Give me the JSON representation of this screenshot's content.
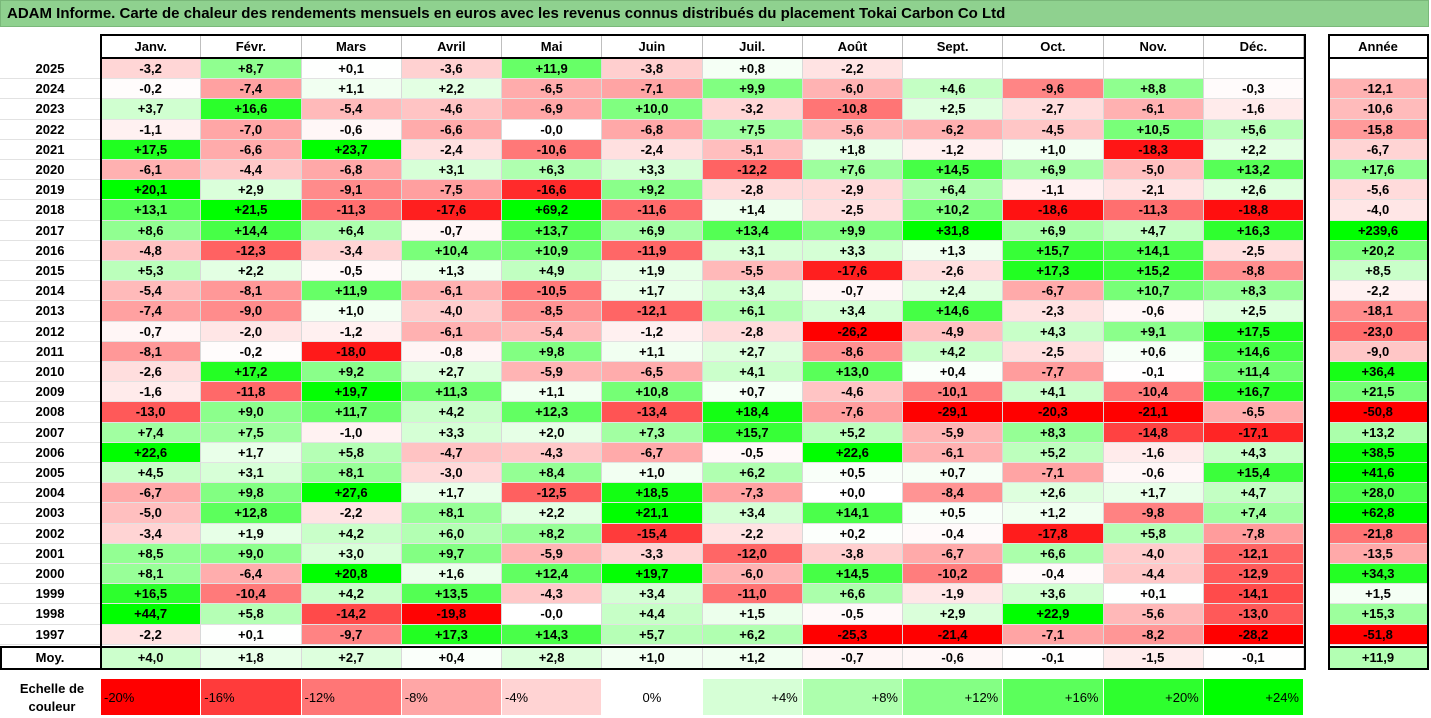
{
  "title": "ADAM Informe. Carte de chaleur des rendements mensuels en euros avec les revenus connus distribués du placement Tokai Carbon Co Ltd",
  "chart_data": {
    "type": "heatmap",
    "months": [
      "Janv.",
      "Févr.",
      "Mars",
      "Avril",
      "Mai",
      "Juin",
      "Juil.",
      "Août",
      "Sept.",
      "Oct.",
      "Nov.",
      "Déc."
    ],
    "annual_header": "Année",
    "rows": [
      {
        "year": "2025",
        "values": [
          "-3,2",
          "+8,7",
          "+0,1",
          "-3,6",
          "+11,9",
          "-3,8",
          "+0,8",
          "-2,2",
          "",
          "",
          "",
          ""
        ],
        "annual": ""
      },
      {
        "year": "2024",
        "values": [
          "-0,2",
          "-7,4",
          "+1,1",
          "+2,2",
          "-6,5",
          "-7,1",
          "+9,9",
          "-6,0",
          "+4,6",
          "-9,6",
          "+8,8",
          "-0,3"
        ],
        "annual": "-12,1"
      },
      {
        "year": "2023",
        "values": [
          "+3,7",
          "+16,6",
          "-5,4",
          "-4,6",
          "-6,9",
          "+10,0",
          "-3,2",
          "-10,8",
          "+2,5",
          "-2,7",
          "-6,1",
          "-1,6"
        ],
        "annual": "-10,6"
      },
      {
        "year": "2022",
        "values": [
          "-1,1",
          "-7,0",
          "-0,6",
          "-6,6",
          "-0,0",
          "-6,8",
          "+7,5",
          "-5,6",
          "-6,2",
          "-4,5",
          "+10,5",
          "+5,6"
        ],
        "annual": "-15,8"
      },
      {
        "year": "2021",
        "values": [
          "+17,5",
          "-6,6",
          "+23,7",
          "-2,4",
          "-10,6",
          "-2,4",
          "-5,1",
          "+1,8",
          "-1,2",
          "+1,0",
          "-18,3",
          "+2,2"
        ],
        "annual": "-6,7"
      },
      {
        "year": "2020",
        "values": [
          "-6,1",
          "-4,4",
          "-6,8",
          "+3,1",
          "+6,3",
          "+3,3",
          "-12,2",
          "+7,6",
          "+14,5",
          "+6,9",
          "-5,0",
          "+13,2"
        ],
        "annual": "+17,6"
      },
      {
        "year": "2019",
        "values": [
          "+20,1",
          "+2,9",
          "-9,1",
          "-7,5",
          "-16,6",
          "+9,2",
          "-2,8",
          "-2,9",
          "+6,4",
          "-1,1",
          "-2,1",
          "+2,6"
        ],
        "annual": "-5,6"
      },
      {
        "year": "2018",
        "values": [
          "+13,1",
          "+21,5",
          "-11,3",
          "-17,6",
          "+69,2",
          "-11,6",
          "+1,4",
          "-2,5",
          "+10,2",
          "-18,6",
          "-11,3",
          "-18,8"
        ],
        "annual": "-4,0"
      },
      {
        "year": "2017",
        "values": [
          "+8,6",
          "+14,4",
          "+6,4",
          "-0,7",
          "+13,7",
          "+6,9",
          "+13,4",
          "+9,9",
          "+31,8",
          "+6,9",
          "+4,7",
          "+16,3"
        ],
        "annual": "+239,6"
      },
      {
        "year": "2016",
        "values": [
          "-4,8",
          "-12,3",
          "-3,4",
          "+10,4",
          "+10,9",
          "-11,9",
          "+3,1",
          "+3,3",
          "+1,3",
          "+15,7",
          "+14,1",
          "-2,5"
        ],
        "annual": "+20,2"
      },
      {
        "year": "2015",
        "values": [
          "+5,3",
          "+2,2",
          "-0,5",
          "+1,3",
          "+4,9",
          "+1,9",
          "-5,5",
          "-17,6",
          "-2,6",
          "+17,3",
          "+15,2",
          "-8,8"
        ],
        "annual": "+8,5"
      },
      {
        "year": "2014",
        "values": [
          "-5,4",
          "-8,1",
          "+11,9",
          "-6,1",
          "-10,5",
          "+1,7",
          "+3,4",
          "-0,7",
          "+2,4",
          "-6,7",
          "+10,7",
          "+8,3"
        ],
        "annual": "-2,2"
      },
      {
        "year": "2013",
        "values": [
          "-7,4",
          "-9,0",
          "+1,0",
          "-4,0",
          "-8,5",
          "-12,1",
          "+6,1",
          "+3,4",
          "+14,6",
          "-2,3",
          "-0,6",
          "+2,5"
        ],
        "annual": "-18,1"
      },
      {
        "year": "2012",
        "values": [
          "-0,7",
          "-2,0",
          "-1,2",
          "-6,1",
          "-5,4",
          "-1,2",
          "-2,8",
          "-26,2",
          "-4,9",
          "+4,3",
          "+9,1",
          "+17,5"
        ],
        "annual": "-23,0"
      },
      {
        "year": "2011",
        "values": [
          "-8,1",
          "-0,2",
          "-18,0",
          "-0,8",
          "+9,8",
          "+1,1",
          "+2,7",
          "-8,6",
          "+4,2",
          "-2,5",
          "+0,6",
          "+14,6"
        ],
        "annual": "-9,0"
      },
      {
        "year": "2010",
        "values": [
          "-2,6",
          "+17,2",
          "+9,2",
          "+2,7",
          "-5,9",
          "-6,5",
          "+4,1",
          "+13,0",
          "+0,4",
          "-7,7",
          "-0,1",
          "+11,4"
        ],
        "annual": "+36,4"
      },
      {
        "year": "2009",
        "values": [
          "-1,6",
          "-11,8",
          "+19,7",
          "+11,3",
          "+1,1",
          "+10,8",
          "+0,7",
          "-4,6",
          "-10,1",
          "+4,1",
          "-10,4",
          "+16,7"
        ],
        "annual": "+21,5"
      },
      {
        "year": "2008",
        "values": [
          "-13,0",
          "+9,0",
          "+11,7",
          "+4,2",
          "+12,3",
          "-13,4",
          "+18,4",
          "-7,6",
          "-29,1",
          "-20,3",
          "-21,1",
          "-6,5"
        ],
        "annual": "-50,8"
      },
      {
        "year": "2007",
        "values": [
          "+7,4",
          "+7,5",
          "-1,0",
          "+3,3",
          "+2,0",
          "+7,3",
          "+15,7",
          "+5,2",
          "-5,9",
          "+8,3",
          "-14,8",
          "-17,1"
        ],
        "annual": "+13,2"
      },
      {
        "year": "2006",
        "values": [
          "+22,6",
          "+1,7",
          "+5,8",
          "-4,7",
          "-4,3",
          "-6,7",
          "-0,5",
          "+22,6",
          "-6,1",
          "+5,2",
          "-1,6",
          "+4,3"
        ],
        "annual": "+38,5"
      },
      {
        "year": "2005",
        "values": [
          "+4,5",
          "+3,1",
          "+8,1",
          "-3,0",
          "+8,4",
          "+1,0",
          "+6,2",
          "+0,5",
          "+0,7",
          "-7,1",
          "-0,6",
          "+15,4"
        ],
        "annual": "+41,6"
      },
      {
        "year": "2004",
        "values": [
          "-6,7",
          "+9,8",
          "+27,6",
          "+1,7",
          "-12,5",
          "+18,5",
          "-7,3",
          "+0,0",
          "-8,4",
          "+2,6",
          "+1,7",
          "+4,7"
        ],
        "annual": "+28,0"
      },
      {
        "year": "2003",
        "values": [
          "-5,0",
          "+12,8",
          "-2,2",
          "+8,1",
          "+2,2",
          "+21,1",
          "+3,4",
          "+14,1",
          "+0,5",
          "+1,2",
          "-9,8",
          "+7,4"
        ],
        "annual": "+62,8"
      },
      {
        "year": "2002",
        "values": [
          "-3,4",
          "+1,9",
          "+4,2",
          "+6,0",
          "+8,2",
          "-15,4",
          "-2,2",
          "+0,2",
          "-0,4",
          "-17,8",
          "+5,8",
          "-7,8"
        ],
        "annual": "-21,8"
      },
      {
        "year": "2001",
        "values": [
          "+8,5",
          "+9,0",
          "+3,0",
          "+9,7",
          "-5,9",
          "-3,3",
          "-12,0",
          "-3,8",
          "-6,7",
          "+6,6",
          "-4,0",
          "-12,1"
        ],
        "annual": "-13,5"
      },
      {
        "year": "2000",
        "values": [
          "+8,1",
          "-6,4",
          "+20,8",
          "+1,6",
          "+12,4",
          "+19,7",
          "-6,0",
          "+14,5",
          "-10,2",
          "-0,4",
          "-4,4",
          "-12,9"
        ],
        "annual": "+34,3"
      },
      {
        "year": "1999",
        "values": [
          "+16,5",
          "-10,4",
          "+4,2",
          "+13,5",
          "-4,3",
          "+3,4",
          "-11,0",
          "+6,6",
          "-1,9",
          "+3,6",
          "+0,1",
          "-14,1"
        ],
        "annual": "+1,5"
      },
      {
        "year": "1998",
        "values": [
          "+44,7",
          "+5,8",
          "-14,2",
          "-19,8",
          "-0,0",
          "+4,4",
          "+1,5",
          "-0,5",
          "+2,9",
          "+22,9",
          "-5,6",
          "-13,0"
        ],
        "annual": "+15,3"
      },
      {
        "year": "1997",
        "values": [
          "-2,2",
          "+0,1",
          "-9,7",
          "+17,3",
          "+14,3",
          "+5,7",
          "+6,2",
          "-25,3",
          "-21,4",
          "-7,1",
          "-8,2",
          "-28,2"
        ],
        "annual": "-51,8"
      }
    ],
    "average": {
      "label": "Moy.",
      "values": [
        "+4,0",
        "+1,8",
        "+2,7",
        "+0,4",
        "+2,8",
        "+1,0",
        "+1,2",
        "-0,7",
        "-0,6",
        "-0,1",
        "-1,5",
        "-0,1"
      ],
      "annual": "+11,9"
    },
    "color_scale": {
      "label": "Echelle de couleur",
      "stops": [
        "-20%",
        "-16%",
        "-12%",
        "-8%",
        "-4%",
        "0%",
        "+4%",
        "+8%",
        "+12%",
        "+16%",
        "+20%",
        "+24%"
      ],
      "colors": [
        "#ff0000",
        "#ff3b3b",
        "#ff7676",
        "#ffa6a6",
        "#ffd3d3",
        "#ffffff",
        "#d6ffd6",
        "#adffad",
        "#84ff84",
        "#5bff5b",
        "#2eff2e",
        "#00ff00"
      ]
    }
  }
}
